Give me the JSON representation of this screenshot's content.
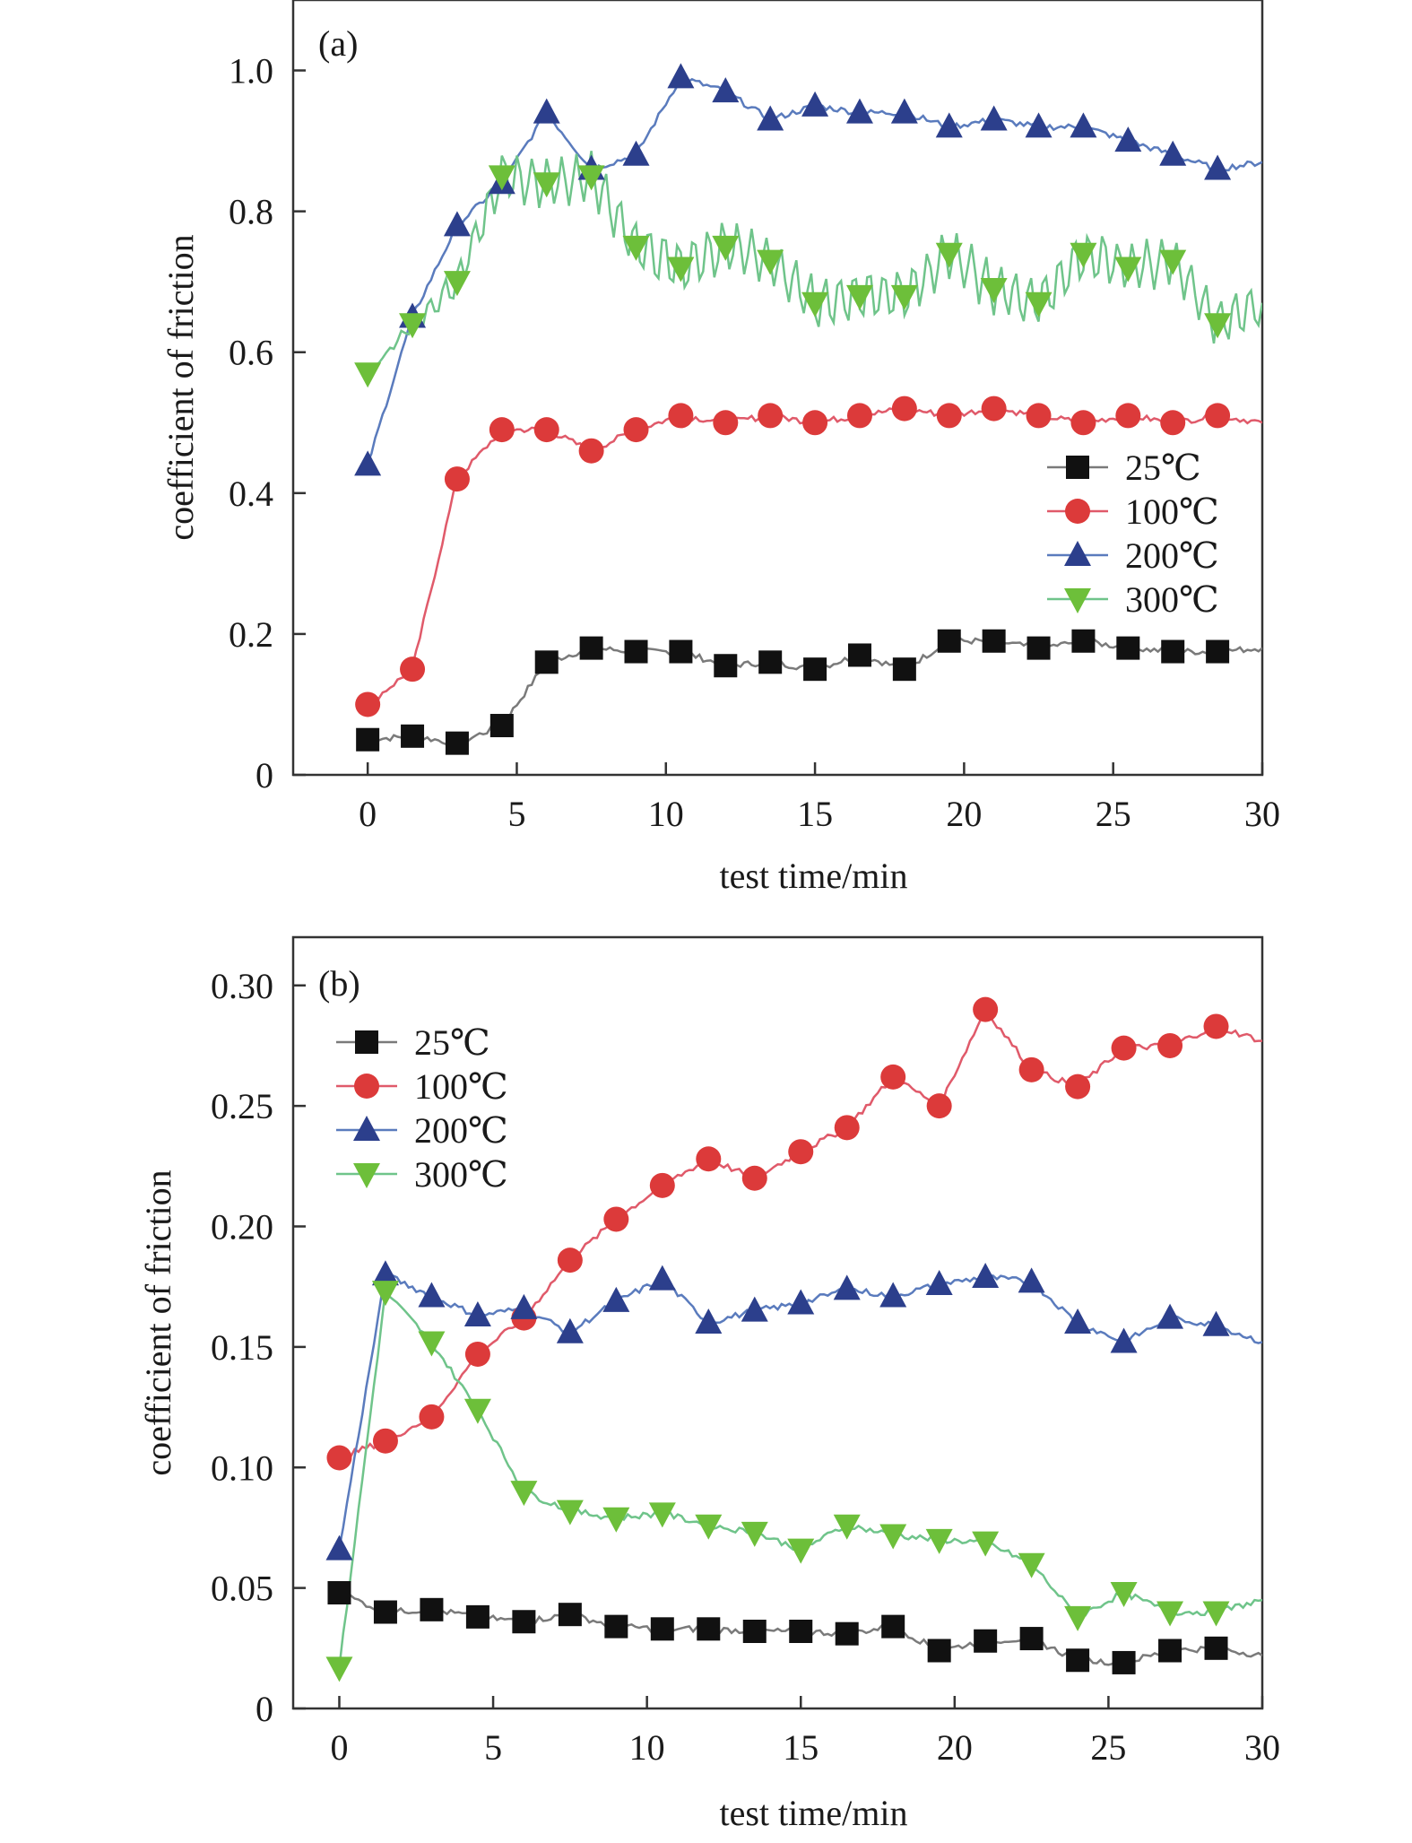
{
  "chart_data": [
    {
      "type": "line",
      "panel_label": "(a)",
      "xlabel": "test time/min",
      "ylabel": "coefficient of friction",
      "xlim": [
        -2.5,
        30
      ],
      "ylim": [
        0,
        1.1
      ],
      "xticks": [
        0,
        5,
        10,
        15,
        20,
        25,
        30
      ],
      "xtick_labels": [
        "0",
        "5",
        "10",
        "15",
        "20",
        "25",
        "30"
      ],
      "yticks": [
        0,
        0.2,
        0.4,
        0.6,
        0.8,
        1.0
      ],
      "ytick_labels": [
        "0",
        "0.2",
        "0.4",
        "0.6",
        "0.8",
        "1.0"
      ],
      "grid": false,
      "legend_position": "right",
      "series": [
        {
          "name": "25℃",
          "marker": "square",
          "line_color": "#7a7a7a",
          "marker_color": "#111111",
          "x": [
            0,
            1.5,
            3,
            4.5,
            6,
            7.5,
            9,
            10.5,
            12,
            13.5,
            15,
            16.5,
            18,
            19.5,
            21,
            22.5,
            24,
            25.5,
            27,
            28.5,
            30
          ],
          "values": [
            0.05,
            0.055,
            0.045,
            0.07,
            0.16,
            0.18,
            0.175,
            0.175,
            0.155,
            0.16,
            0.15,
            0.17,
            0.15,
            0.19,
            0.19,
            0.18,
            0.19,
            0.18,
            0.175,
            0.175,
            0.18
          ]
        },
        {
          "name": "100℃",
          "marker": "circle",
          "line_color": "#e05a6a",
          "marker_color": "#dc3a3a",
          "x": [
            0,
            1.5,
            3,
            4.5,
            6,
            7.5,
            9,
            10.5,
            12,
            13.5,
            15,
            16.5,
            18,
            19.5,
            21,
            22.5,
            24,
            25.5,
            27,
            28.5,
            30
          ],
          "values": [
            0.1,
            0.15,
            0.42,
            0.49,
            0.49,
            0.46,
            0.49,
            0.51,
            0.5,
            0.51,
            0.5,
            0.51,
            0.52,
            0.51,
            0.52,
            0.51,
            0.5,
            0.51,
            0.5,
            0.51,
            0.5
          ]
        },
        {
          "name": "200℃",
          "marker": "triangle-up",
          "line_color": "#5a7bbd",
          "marker_color": "#2c3f8c",
          "x": [
            0,
            1.5,
            3,
            4.5,
            6,
            7.5,
            9,
            10.5,
            12,
            13.5,
            15,
            16.5,
            18,
            19.5,
            21,
            22.5,
            24,
            25.5,
            27,
            28.5,
            30
          ],
          "values": [
            0.44,
            0.65,
            0.78,
            0.84,
            0.94,
            0.86,
            0.88,
            0.99,
            0.97,
            0.93,
            0.95,
            0.94,
            0.94,
            0.92,
            0.93,
            0.92,
            0.92,
            0.9,
            0.88,
            0.86,
            0.87
          ]
        },
        {
          "name": "300℃",
          "marker": "triangle-down",
          "line_color": "#6fc48a",
          "marker_color": "#6dbf3a",
          "x": [
            0,
            1.5,
            3,
            4.5,
            6,
            7.5,
            9,
            10.5,
            12,
            13.5,
            15,
            16.5,
            18,
            19.5,
            21,
            22.5,
            24,
            25.5,
            27,
            28.5,
            30
          ],
          "values": [
            0.57,
            0.64,
            0.7,
            0.85,
            0.84,
            0.85,
            0.75,
            0.72,
            0.75,
            0.73,
            0.67,
            0.68,
            0.68,
            0.74,
            0.69,
            0.67,
            0.74,
            0.72,
            0.73,
            0.64,
            0.67
          ],
          "oscillation": 0.07
        }
      ]
    },
    {
      "type": "line",
      "panel_label": "(b)",
      "xlabel": "test time/min",
      "ylabel": "coefficient of friction",
      "xlim": [
        -1.5,
        30
      ],
      "ylim": [
        0,
        0.32
      ],
      "xticks": [
        0,
        5,
        10,
        15,
        20,
        25,
        30
      ],
      "xtick_labels": [
        "0",
        "5",
        "10",
        "15",
        "20",
        "25",
        "30"
      ],
      "yticks": [
        0,
        0.05,
        0.1,
        0.15,
        0.2,
        0.25,
        0.3
      ],
      "ytick_labels": [
        "0",
        "0.05",
        "0.10",
        "0.15",
        "0.20",
        "0.25",
        "0.30"
      ],
      "grid": false,
      "legend_position": "top-left",
      "series": [
        {
          "name": "25℃",
          "marker": "square",
          "line_color": "#7a7a7a",
          "marker_color": "#111111",
          "x": [
            0,
            1.5,
            3,
            4.5,
            6,
            7.5,
            9,
            10.5,
            12,
            13.5,
            15,
            16.5,
            18,
            19.5,
            21,
            22.5,
            24,
            25.5,
            27,
            28.5,
            30
          ],
          "values": [
            0.048,
            0.04,
            0.041,
            0.038,
            0.036,
            0.039,
            0.034,
            0.033,
            0.033,
            0.032,
            0.032,
            0.031,
            0.034,
            0.024,
            0.028,
            0.029,
            0.02,
            0.019,
            0.024,
            0.025,
            0.022
          ]
        },
        {
          "name": "100℃",
          "marker": "circle",
          "line_color": "#e05a6a",
          "marker_color": "#dc3a3a",
          "x": [
            0,
            1.5,
            3,
            4.5,
            6,
            7.5,
            9,
            10.5,
            12,
            13.5,
            15,
            16.5,
            18,
            19.5,
            21,
            22.5,
            24,
            25.5,
            27,
            28.5,
            30
          ],
          "values": [
            0.104,
            0.111,
            0.121,
            0.147,
            0.162,
            0.186,
            0.203,
            0.217,
            0.228,
            0.22,
            0.231,
            0.241,
            0.262,
            0.25,
            0.29,
            0.265,
            0.258,
            0.274,
            0.275,
            0.283,
            0.277
          ]
        },
        {
          "name": "200℃",
          "marker": "triangle-up",
          "line_color": "#5a7bbd",
          "marker_color": "#2c3f8c",
          "x": [
            0,
            1.5,
            3,
            4.5,
            6,
            7.5,
            9,
            10.5,
            12,
            13.5,
            15,
            16.5,
            18,
            19.5,
            21,
            22.5,
            24,
            25.5,
            27,
            28.5,
            30
          ],
          "values": [
            0.066,
            0.18,
            0.171,
            0.163,
            0.166,
            0.156,
            0.169,
            0.178,
            0.16,
            0.165,
            0.168,
            0.174,
            0.171,
            0.176,
            0.179,
            0.177,
            0.16,
            0.152,
            0.162,
            0.159,
            0.152
          ]
        },
        {
          "name": "300℃",
          "marker": "triangle-down",
          "line_color": "#6fc48a",
          "marker_color": "#6dbf3a",
          "x": [
            0,
            1.5,
            3,
            4.5,
            6,
            7.5,
            9,
            10.5,
            12,
            13.5,
            15,
            16.5,
            18,
            19.5,
            21,
            22.5,
            24,
            25.5,
            27,
            28.5,
            30
          ],
          "values": [
            0.017,
            0.173,
            0.152,
            0.124,
            0.09,
            0.082,
            0.079,
            0.081,
            0.076,
            0.073,
            0.066,
            0.076,
            0.072,
            0.07,
            0.069,
            0.06,
            0.038,
            0.048,
            0.04,
            0.04,
            0.045
          ]
        }
      ]
    }
  ]
}
